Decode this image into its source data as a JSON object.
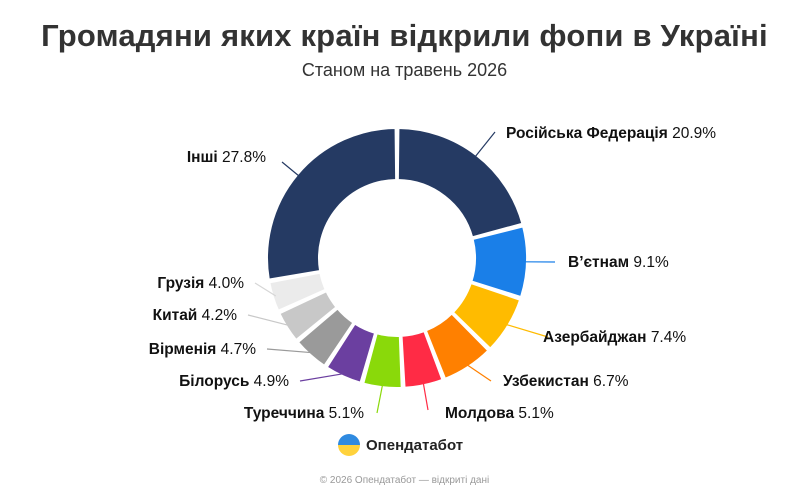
{
  "header": {
    "title": "Громадяни яких країн відкрили фопи в Україні",
    "subtitle": "Станом на травень 2026"
  },
  "brand": {
    "name": "Опендатабот",
    "icon": "opendatabot-logo-icon"
  },
  "footer": {
    "text": "© 2026 Опендатабот — відкриті дані"
  },
  "chart_data": {
    "type": "pie",
    "title": "Громадяни яких країн відкрили фопи в Україні",
    "subtitle": "Станом на травень 2026",
    "donut": true,
    "slices": [
      {
        "name": "Російська Федерація",
        "value": 20.9,
        "label": "20.9%",
        "color": "#253a63"
      },
      {
        "name": "В’єтнам",
        "value": 9.1,
        "label": "9.1%",
        "color": "#1a7fe8"
      },
      {
        "name": "Азербайджан",
        "value": 7.4,
        "label": "7.4%",
        "color": "#ffbb00"
      },
      {
        "name": "Узбекистан",
        "value": 6.7,
        "label": "6.7%",
        "color": "#ff8000"
      },
      {
        "name": "Молдова",
        "value": 5.1,
        "label": "5.1%",
        "color": "#ff2b45"
      },
      {
        "name": "Туреччина",
        "value": 5.1,
        "label": "5.1%",
        "color": "#8ad90a"
      },
      {
        "name": "Білорусь",
        "value": 4.9,
        "label": "4.9%",
        "color": "#6b3fa0"
      },
      {
        "name": "Вірменія",
        "value": 4.7,
        "label": "4.7%",
        "color": "#9a9a9a"
      },
      {
        "name": "Китай",
        "value": 4.2,
        "label": "4.2%",
        "color": "#c8c8c8"
      },
      {
        "name": "Грузія",
        "value": 4.0,
        "label": "4.0%",
        "color": "#ebebeb"
      },
      {
        "name": "Інші",
        "value": 27.8,
        "label": "27.8%",
        "color": "#253a63"
      }
    ]
  }
}
